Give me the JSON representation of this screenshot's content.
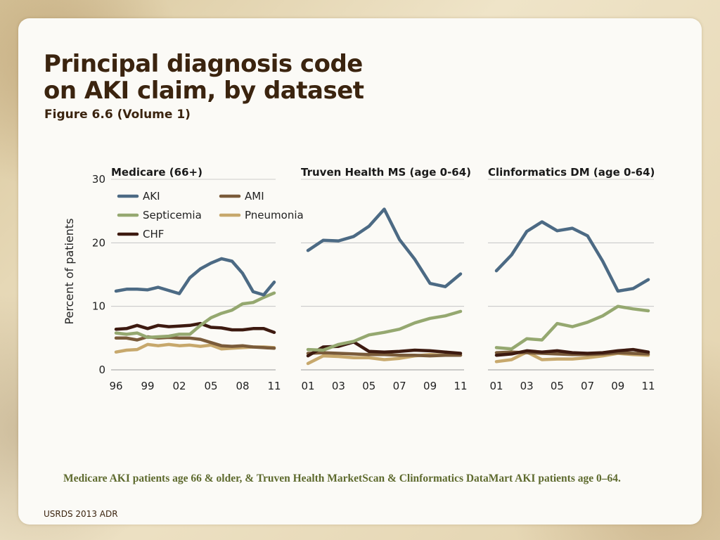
{
  "title_line1": "Principal diagnosis code",
  "title_line2": "on AKI claim, by dataset",
  "subtitle": "Figure 6.6 (Volume 1)",
  "caption": "Medicare AKI patients age 66 & older, & Truven Health MarketScan & Clinformatics DataMart AKI patients age 0–64.",
  "footer": "USRDS 2013 ADR",
  "colors": {
    "AKI": "#4c6a84",
    "Septicemia": "#95a870",
    "CHF": "#3d1a10",
    "AMI": "#7a5b3a",
    "Pneumonia": "#c7a86c",
    "grid": "#bdbdbd",
    "text": "#222222"
  },
  "chart_data": [
    {
      "type": "line",
      "title": "Medicare (66+)",
      "ylabel": "Percent of patients",
      "ylim": [
        0,
        30
      ],
      "yticks": [
        "0",
        "10",
        "20",
        "30"
      ],
      "x": [
        1996,
        1997,
        1998,
        1999,
        2000,
        2001,
        2002,
        2003,
        2004,
        2005,
        2006,
        2007,
        2008,
        2009,
        2010,
        2011
      ],
      "xtick_values": [
        1996,
        1999,
        2002,
        2005,
        2008,
        2011
      ],
      "xtick_labels": [
        "96",
        "99",
        "02",
        "05",
        "08",
        "11"
      ],
      "legend": [
        "AKI",
        "Septicemia",
        "CHF",
        "AMI",
        "Pneumonia"
      ],
      "grid": true,
      "series": [
        {
          "name": "AKI",
          "values": [
            12.4,
            12.7,
            12.7,
            12.6,
            13.0,
            12.5,
            12.0,
            14.5,
            15.9,
            16.8,
            17.5,
            17.1,
            15.2,
            12.3,
            11.8,
            13.8
          ]
        },
        {
          "name": "Septicemia",
          "values": [
            5.8,
            5.6,
            5.8,
            5.1,
            5.2,
            5.3,
            5.6,
            5.6,
            7.0,
            8.2,
            8.9,
            9.4,
            10.4,
            10.6,
            11.4,
            12.1
          ]
        },
        {
          "name": "CHF",
          "values": [
            6.4,
            6.5,
            7.0,
            6.5,
            7.0,
            6.8,
            6.9,
            7.0,
            7.3,
            6.7,
            6.6,
            6.3,
            6.3,
            6.5,
            6.5,
            5.9
          ]
        },
        {
          "name": "AMI",
          "values": [
            5.0,
            5.0,
            4.7,
            5.2,
            5.0,
            5.1,
            5.0,
            5.0,
            4.8,
            4.3,
            3.8,
            3.7,
            3.8,
            3.6,
            3.5,
            3.4
          ]
        },
        {
          "name": "Pneumonia",
          "values": [
            2.8,
            3.1,
            3.2,
            4.0,
            3.8,
            4.0,
            3.8,
            3.9,
            3.7,
            3.9,
            3.3,
            3.4,
            3.5,
            3.6,
            3.6,
            3.5
          ]
        }
      ]
    },
    {
      "type": "line",
      "title": "Truven Health MS  (age 0-64)",
      "ylim": [
        0,
        30
      ],
      "x": [
        2001,
        2002,
        2003,
        2004,
        2005,
        2006,
        2007,
        2008,
        2009,
        2010,
        2011
      ],
      "xtick_values": [
        2001,
        2003,
        2005,
        2007,
        2009,
        2011
      ],
      "xtick_labels": [
        "01",
        "03",
        "05",
        "07",
        "09",
        "11"
      ],
      "grid": true,
      "series": [
        {
          "name": "AKI",
          "values": [
            18.8,
            20.4,
            20.3,
            21.0,
            22.6,
            25.3,
            20.5,
            17.4,
            13.6,
            13.1,
            15.1
          ]
        },
        {
          "name": "Septicemia",
          "values": [
            3.2,
            3.1,
            4.0,
            4.5,
            5.5,
            5.9,
            6.4,
            7.4,
            8.1,
            8.5,
            9.2
          ]
        },
        {
          "name": "CHF",
          "values": [
            2.2,
            3.6,
            3.7,
            4.4,
            2.9,
            2.8,
            2.9,
            3.1,
            3.0,
            2.8,
            2.6
          ]
        },
        {
          "name": "AMI",
          "values": [
            2.6,
            2.7,
            2.6,
            2.5,
            2.4,
            2.4,
            2.3,
            2.3,
            2.2,
            2.3,
            2.3
          ]
        },
        {
          "name": "Pneumonia",
          "values": [
            1.0,
            2.2,
            2.1,
            1.9,
            1.9,
            1.6,
            1.8,
            2.2,
            2.4,
            2.3,
            2.3
          ]
        }
      ]
    },
    {
      "type": "line",
      "title": "Clinformatics DM (age 0-64)",
      "ylim": [
        0,
        30
      ],
      "x": [
        2001,
        2002,
        2003,
        2004,
        2005,
        2006,
        2007,
        2008,
        2009,
        2010,
        2011
      ],
      "xtick_values": [
        2001,
        2003,
        2005,
        2007,
        2009,
        2011
      ],
      "xtick_labels": [
        "01",
        "03",
        "05",
        "07",
        "09",
        "11"
      ],
      "grid": true,
      "series": [
        {
          "name": "AKI",
          "values": [
            15.6,
            18.1,
            21.8,
            23.3,
            21.9,
            22.3,
            21.1,
            17.1,
            12.4,
            12.8,
            14.2
          ]
        },
        {
          "name": "Septicemia",
          "values": [
            3.5,
            3.3,
            4.9,
            4.7,
            7.3,
            6.8,
            7.5,
            8.5,
            10.0,
            9.6,
            9.3
          ]
        },
        {
          "name": "CHF",
          "values": [
            2.3,
            2.5,
            3.0,
            2.8,
            3.0,
            2.7,
            2.6,
            2.7,
            3.0,
            3.2,
            2.8
          ]
        },
        {
          "name": "AMI",
          "values": [
            2.7,
            2.8,
            2.7,
            2.6,
            2.5,
            2.4,
            2.4,
            2.5,
            2.7,
            2.6,
            2.5
          ]
        },
        {
          "name": "Pneumonia",
          "values": [
            1.3,
            1.6,
            2.8,
            1.6,
            1.7,
            1.7,
            1.9,
            2.2,
            2.6,
            2.4,
            2.3
          ]
        }
      ]
    }
  ]
}
